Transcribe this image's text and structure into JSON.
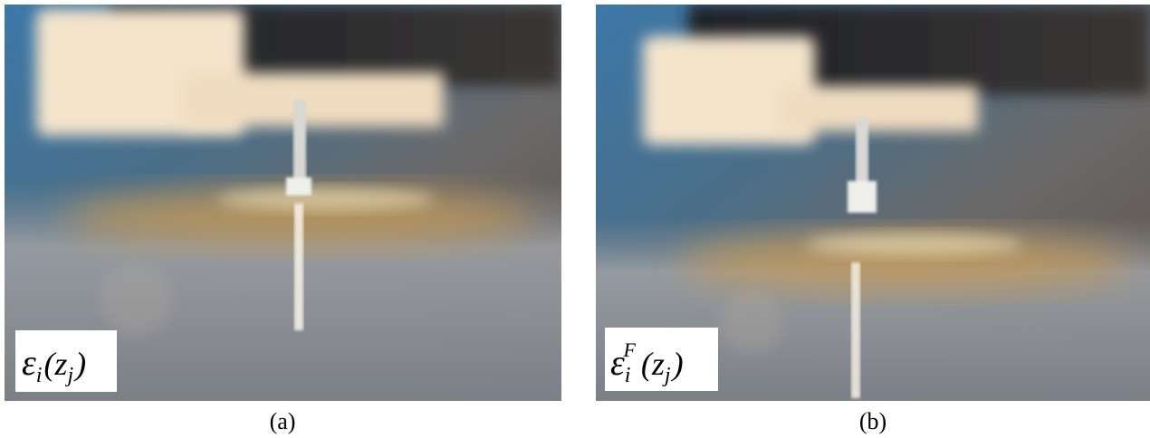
{
  "panels": [
    {
      "caption": "(a)",
      "label": {
        "base": "ε",
        "sub": "i",
        "arg_open": "(z",
        "arg_sub": "j",
        "arg_close": ")"
      }
    },
    {
      "caption": "(b)",
      "label": {
        "base": "ε",
        "sub": "i",
        "sup": "F",
        "arg_open": "(z",
        "arg_sub": "j",
        "arg_close": ")"
      }
    }
  ]
}
